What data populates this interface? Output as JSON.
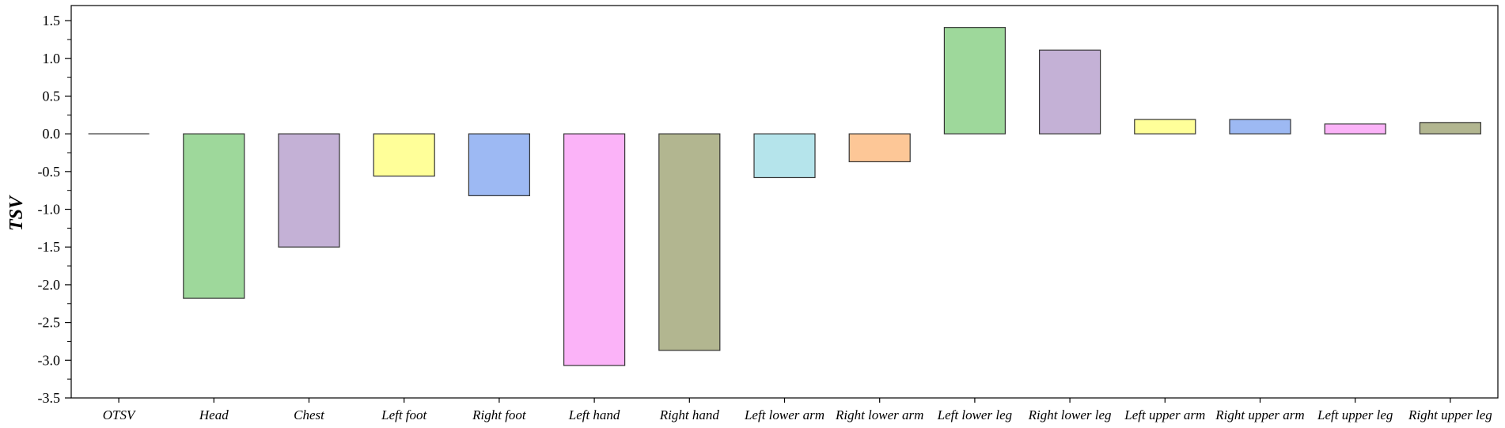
{
  "chart_data": {
    "type": "bar",
    "title": "",
    "xlabel": "",
    "ylabel": "TSV",
    "ylim": [
      -3.5,
      1.7
    ],
    "yticks": [
      "1.5",
      "1.0",
      "0.5",
      "0.0",
      "-0.5",
      "-1.0",
      "-1.5",
      "-2.0",
      "-2.5",
      "-3.0",
      "-3.5"
    ],
    "grid": false,
    "categories": [
      "OTSV",
      "Head",
      "Chest",
      "Left foot",
      "Right foot",
      "Left hand",
      "Right hand",
      "Left lower arm",
      "Right lower arm",
      "Left lower leg",
      "Right lower leg",
      "Left upper arm",
      "Right upper arm",
      "Left upper leg",
      "Right upper leg"
    ],
    "values": [
      0.0,
      -2.18,
      -1.5,
      -0.56,
      -0.82,
      -3.07,
      -2.87,
      -0.58,
      -0.37,
      1.41,
      1.11,
      0.19,
      0.19,
      0.13,
      0.15
    ],
    "colors": [
      "#9a9a9a",
      "#9ed89b",
      "#c4b1d6",
      "#ffff99",
      "#9db9f3",
      "#fbb3f8",
      "#b2b690",
      "#b5e4eb",
      "#fdc797",
      "#9ed89b",
      "#c4b1d6",
      "#ffff99",
      "#9db9f3",
      "#fbb3f8",
      "#b2b690"
    ]
  }
}
